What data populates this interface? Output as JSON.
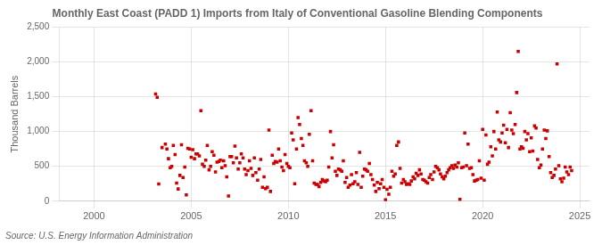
{
  "chart_data": {
    "type": "scatter",
    "title": "Monthly East Coast (PADD 1) Imports from Italy of Conventional Gasoline Blending Components",
    "source": "Source: U.S. Energy Information Administration",
    "ylabel": "Thousand Barrels",
    "color": "#cc0000",
    "marker": "square",
    "grid": true,
    "xlim": [
      1998.2,
      2025.5
    ],
    "xticks": [
      2000,
      2005,
      2010,
      2015,
      2020,
      2025
    ],
    "ylim": [
      0,
      2500
    ],
    "yticks": [
      0,
      500,
      {
        "value": 1000,
        "label": "1,000"
      },
      {
        "value": 1500,
        "label": "1,500"
      },
      {
        "value": 2000,
        "label": "2,000"
      },
      {
        "value": 2500,
        "label": "2,500"
      }
    ],
    "x": [
      2003.25,
      2003.33,
      2003.5,
      2003.67,
      2003.75,
      2003.83,
      2003.92,
      2004.0,
      2004.08,
      2004.17,
      2004.25,
      2004.33,
      2004.42,
      2004.5,
      2004.58,
      2004.67,
      2004.75,
      2004.83,
      2004.92,
      2003.17,
      2005.0,
      2005.08,
      2005.17,
      2005.25,
      2005.33,
      2005.42,
      2005.5,
      2005.58,
      2005.67,
      2005.75,
      2005.83,
      2005.92,
      2006.0,
      2006.08,
      2006.17,
      2006.25,
      2006.33,
      2006.42,
      2006.5,
      2006.58,
      2006.67,
      2006.75,
      2006.83,
      2006.92,
      2007.0,
      2007.08,
      2007.17,
      2007.25,
      2007.33,
      2007.42,
      2007.5,
      2007.58,
      2007.67,
      2007.75,
      2007.83,
      2007.92,
      2008.0,
      2008.08,
      2008.17,
      2008.25,
      2008.33,
      2008.42,
      2008.5,
      2008.58,
      2008.67,
      2008.75,
      2008.83,
      2008.92,
      2009.0,
      2009.08,
      2009.17,
      2009.25,
      2009.33,
      2009.42,
      2009.5,
      2009.58,
      2009.67,
      2009.75,
      2009.83,
      2009.92,
      2010.0,
      2010.08,
      2010.17,
      2010.25,
      2010.33,
      2010.42,
      2010.5,
      2010.58,
      2010.67,
      2010.75,
      2010.83,
      2010.92,
      2011.0,
      2011.08,
      2011.17,
      2011.25,
      2011.33,
      2011.42,
      2011.5,
      2011.58,
      2011.67,
      2011.75,
      2011.83,
      2011.92,
      2012.0,
      2012.08,
      2012.17,
      2012.25,
      2012.33,
      2012.42,
      2012.5,
      2012.58,
      2012.67,
      2012.75,
      2012.83,
      2012.92,
      2013.0,
      2013.08,
      2013.17,
      2013.25,
      2013.33,
      2013.42,
      2013.5,
      2013.58,
      2013.67,
      2013.75,
      2013.83,
      2013.92,
      2014.0,
      2014.08,
      2014.17,
      2014.25,
      2014.33,
      2014.42,
      2014.5,
      2014.58,
      2014.67,
      2014.75,
      2014.83,
      2014.92,
      2015.0,
      2015.08,
      2015.17,
      2015.25,
      2015.33,
      2015.42,
      2015.5,
      2015.58,
      2015.67,
      2015.75,
      2015.83,
      2015.92,
      2016.0,
      2016.08,
      2016.17,
      2016.25,
      2016.33,
      2016.42,
      2016.5,
      2016.58,
      2016.67,
      2016.75,
      2016.83,
      2016.92,
      2017.0,
      2017.08,
      2017.17,
      2017.25,
      2017.33,
      2017.42,
      2017.5,
      2017.58,
      2017.67,
      2017.75,
      2017.83,
      2017.92,
      2018.0,
      2018.08,
      2018.17,
      2018.25,
      2018.33,
      2018.42,
      2018.5,
      2018.58,
      2018.67,
      2018.75,
      2018.83,
      2018.92,
      2019.0,
      2019.08,
      2019.17,
      2019.25,
      2019.33,
      2019.42,
      2019.5,
      2019.58,
      2019.67,
      2019.75,
      2019.83,
      2019.92,
      2020.0,
      2020.08,
      2020.17,
      2020.25,
      2020.33,
      2020.42,
      2020.5,
      2020.58,
      2020.67,
      2020.75,
      2020.83,
      2020.92,
      2021.0,
      2021.08,
      2021.17,
      2021.25,
      2021.33,
      2021.42,
      2021.5,
      2021.58,
      2021.67,
      2021.75,
      2021.83,
      2021.92,
      2022.0,
      2022.08,
      2022.17,
      2022.25,
      2022.33,
      2022.42,
      2022.5,
      2022.58,
      2022.67,
      2022.75,
      2022.83,
      2022.92,
      2023.0,
      2023.08,
      2023.17,
      2023.25,
      2023.33,
      2023.42,
      2023.5,
      2023.58,
      2023.67,
      2023.75,
      2023.83,
      2023.92,
      2024.0,
      2024.08,
      2024.17,
      2024.25,
      2024.33,
      2024.42,
      2024.5,
      2024.58
    ],
    "values": [
      1490,
      246,
      770,
      820,
      750,
      610,
      480,
      500,
      800,
      670,
      260,
      175,
      370,
      810,
      340,
      490,
      90,
      760,
      750,
      1540,
      630,
      740,
      610,
      680,
      680,
      650,
      1300,
      530,
      500,
      590,
      800,
      450,
      500,
      710,
      660,
      420,
      560,
      570,
      590,
      480,
      580,
      510,
      350,
      75,
      640,
      640,
      550,
      790,
      620,
      460,
      550,
      680,
      620,
      460,
      380,
      440,
      580,
      470,
      370,
      620,
      410,
      300,
      460,
      600,
      200,
      350,
      180,
      200,
      1020,
      140,
      660,
      540,
      570,
      560,
      750,
      580,
      490,
      440,
      670,
      540,
      500,
      480,
      980,
      880,
      250,
      750,
      1200,
      1100,
      900,
      800,
      580,
      550,
      500,
      960,
      1300,
      580,
      260,
      240,
      240,
      210,
      270,
      310,
      290,
      280,
      300,
      490,
      1000,
      620,
      810,
      430,
      370,
      460,
      450,
      430,
      580,
      270,
      340,
      200,
      230,
      380,
      250,
      280,
      410,
      240,
      700,
      200,
      360,
      460,
      450,
      430,
      540,
      380,
      310,
      230,
      140,
      270,
      180,
      250,
      310,
      200,
      20,
      170,
      100,
      200,
      430,
      360,
      390,
      800,
      850,
      470,
      260,
      310,
      280,
      240,
      250,
      240,
      290,
      350,
      320,
      400,
      370,
      450,
      390,
      310,
      300,
      280,
      260,
      340,
      380,
      310,
      420,
      500,
      480,
      450,
      390,
      350,
      320,
      360,
      410,
      450,
      480,
      510,
      470,
      520,
      490,
      550,
      25,
      480,
      490,
      980,
      510,
      820,
      470,
      480,
      380,
      290,
      300,
      310,
      580,
      330,
      1030,
      300,
      950,
      530,
      560,
      780,
      650,
      1000,
      750,
      1280,
      880,
      850,
      980,
      1090,
      840,
      1030,
      770,
      1270,
      1020,
      970,
      1100,
      1560,
      2150,
      750,
      780,
      760,
      1000,
      880,
      970,
      710,
      910,
      720,
      1080,
      1050,
      600,
      480,
      520,
      750,
      1020,
      900,
      1010,
      640,
      410,
      340,
      370,
      460,
      1970,
      510,
      320,
      280,
      330,
      490,
      420,
      380,
      490,
      440
    ]
  }
}
